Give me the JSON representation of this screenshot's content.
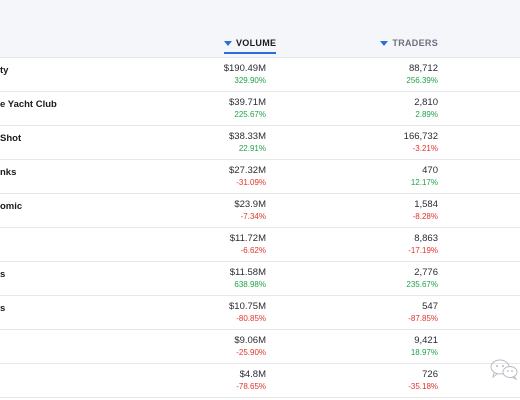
{
  "header": {
    "volume_label": "VOLUME",
    "traders_label": "TRADERS"
  },
  "rows": [
    {
      "name": "ty",
      "volume": "$190.49M",
      "volume_change": "329.90%",
      "volume_dir": "pos",
      "traders": "88,712",
      "traders_change": "256.39%",
      "traders_dir": "pos"
    },
    {
      "name": "e Yacht Club",
      "volume": "$39.71M",
      "volume_change": "225.67%",
      "volume_dir": "pos",
      "traders": "2,810",
      "traders_change": "2.89%",
      "traders_dir": "pos"
    },
    {
      "name": "Shot",
      "volume": "$38.33M",
      "volume_change": "22.91%",
      "volume_dir": "pos",
      "traders": "166,732",
      "traders_change": "-3.21%",
      "traders_dir": "neg"
    },
    {
      "name": "nks",
      "volume": "$27.32M",
      "volume_change": "-31.09%",
      "volume_dir": "neg",
      "traders": "470",
      "traders_change": "12.17%",
      "traders_dir": "pos"
    },
    {
      "name": "omic",
      "volume": "$23.9M",
      "volume_change": "-7.34%",
      "volume_dir": "neg",
      "traders": "1,584",
      "traders_change": "-8.28%",
      "traders_dir": "neg"
    },
    {
      "name": "",
      "volume": "$11.72M",
      "volume_change": "-6.62%",
      "volume_dir": "neg",
      "traders": "8,863",
      "traders_change": "-17.19%",
      "traders_dir": "neg"
    },
    {
      "name": "s",
      "volume": "$11.58M",
      "volume_change": "638.98%",
      "volume_dir": "pos",
      "traders": "2,776",
      "traders_change": "235.67%",
      "traders_dir": "pos"
    },
    {
      "name": "s",
      "volume": "$10.75M",
      "volume_change": "-80.85%",
      "volume_dir": "neg",
      "traders": "547",
      "traders_change": "-87.85%",
      "traders_dir": "neg"
    },
    {
      "name": "",
      "volume": "$9.06M",
      "volume_change": "-25.90%",
      "volume_dir": "neg",
      "traders": "9,421",
      "traders_change": "18.97%",
      "traders_dir": "pos"
    },
    {
      "name": "",
      "volume": "$4.8M",
      "volume_change": "-78.65%",
      "volume_dir": "neg",
      "traders": "726",
      "traders_change": "-35.18%",
      "traders_dir": "neg"
    }
  ],
  "colors": {
    "positive": "#1fa34a",
    "negative": "#e0352b",
    "accent": "#2d6cdf"
  },
  "watermark": {
    "icon": "wechat-icon"
  }
}
